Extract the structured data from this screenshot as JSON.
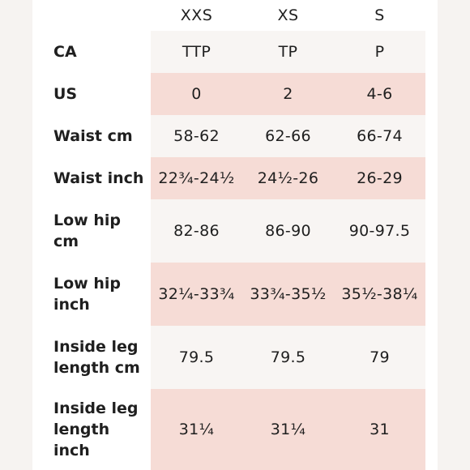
{
  "columns": [
    "XXS",
    "XS",
    "S"
  ],
  "rows": [
    {
      "label": "CA",
      "values": [
        "TTP",
        "TP",
        "P"
      ]
    },
    {
      "label": "US",
      "values": [
        "0",
        "2",
        "4-6"
      ]
    },
    {
      "label": "Waist cm",
      "values": [
        "58-62",
        "62-66",
        "66-74"
      ]
    },
    {
      "label": "Waist inch",
      "values": [
        "22¾-24½",
        "24½-26",
        "26-29"
      ]
    },
    {
      "label": "Low hip cm",
      "values": [
        "82-86",
        "86-90",
        "90-97.5"
      ]
    },
    {
      "label": "Low hip inch",
      "values": [
        "32¼-33¾",
        "33¾-35½",
        "35½-38¼"
      ]
    },
    {
      "label": "Inside leg length cm",
      "values": [
        "79.5",
        "79.5",
        "79"
      ]
    },
    {
      "label": "Inside leg length inch",
      "values": [
        "31¼",
        "31¼",
        "31"
      ]
    }
  ],
  "colors": {
    "pink_row": "#f6dcd6",
    "light_row": "#f8f5f3",
    "background": "#ffffff"
  }
}
